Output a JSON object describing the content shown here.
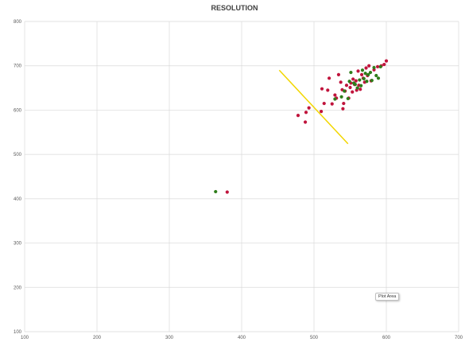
{
  "chart_data": {
    "type": "scatter",
    "title": "RESOLUTION",
    "xlabel": "",
    "ylabel": "",
    "xlim": [
      100,
      700
    ],
    "ylim": [
      100,
      800
    ],
    "xticks": [
      100,
      200,
      300,
      400,
      500,
      600,
      700
    ],
    "yticks": [
      100,
      200,
      300,
      400,
      500,
      600,
      700,
      800
    ],
    "grid": true,
    "legend": "none",
    "series": [
      {
        "color": "#c0143c",
        "points": [
          [
            380,
            415
          ],
          [
            478,
            588
          ],
          [
            488,
            573
          ],
          [
            489,
            595
          ],
          [
            493,
            605
          ],
          [
            510,
            597
          ],
          [
            511,
            648
          ],
          [
            514,
            615
          ],
          [
            519,
            645
          ],
          [
            521,
            672
          ],
          [
            525,
            614
          ],
          [
            529,
            634
          ],
          [
            531,
            627
          ],
          [
            534,
            680
          ],
          [
            537,
            663
          ],
          [
            539,
            646
          ],
          [
            540,
            603
          ],
          [
            541,
            615
          ],
          [
            543,
            643
          ],
          [
            545,
            656
          ],
          [
            548,
            627
          ],
          [
            550,
            651
          ],
          [
            551,
            661
          ],
          [
            553,
            641
          ],
          [
            554,
            670
          ],
          [
            556,
            658
          ],
          [
            558,
            666
          ],
          [
            559,
            645
          ],
          [
            561,
            688
          ],
          [
            562,
            656
          ],
          [
            564,
            647
          ],
          [
            566,
            680
          ],
          [
            568,
            672
          ],
          [
            570,
            663
          ],
          [
            572,
            695
          ],
          [
            574,
            678
          ],
          [
            576,
            700
          ],
          [
            579,
            666
          ],
          [
            583,
            691
          ],
          [
            588,
            698
          ],
          [
            593,
            700
          ],
          [
            597,
            703
          ],
          [
            600,
            711
          ]
        ]
      },
      {
        "color": "#2e7d1a",
        "points": [
          [
            364,
            416
          ],
          [
            529,
            625
          ],
          [
            538,
            630
          ],
          [
            542,
            643
          ],
          [
            547,
            626
          ],
          [
            549,
            665
          ],
          [
            551,
            685
          ],
          [
            555,
            661
          ],
          [
            557,
            658
          ],
          [
            560,
            650
          ],
          [
            563,
            668
          ],
          [
            565,
            655
          ],
          [
            567,
            690
          ],
          [
            569,
            671
          ],
          [
            571,
            683
          ],
          [
            573,
            665
          ],
          [
            575,
            680
          ],
          [
            578,
            685
          ],
          [
            580,
            667
          ],
          [
            583,
            696
          ],
          [
            586,
            678
          ],
          [
            589,
            672
          ],
          [
            592,
            698
          ]
        ]
      }
    ],
    "lines": [
      {
        "color": "#f2d600",
        "points": [
          [
            452,
            690
          ],
          [
            547,
            524
          ]
        ]
      }
    ]
  },
  "tooltip": {
    "text": "Plot Area"
  }
}
